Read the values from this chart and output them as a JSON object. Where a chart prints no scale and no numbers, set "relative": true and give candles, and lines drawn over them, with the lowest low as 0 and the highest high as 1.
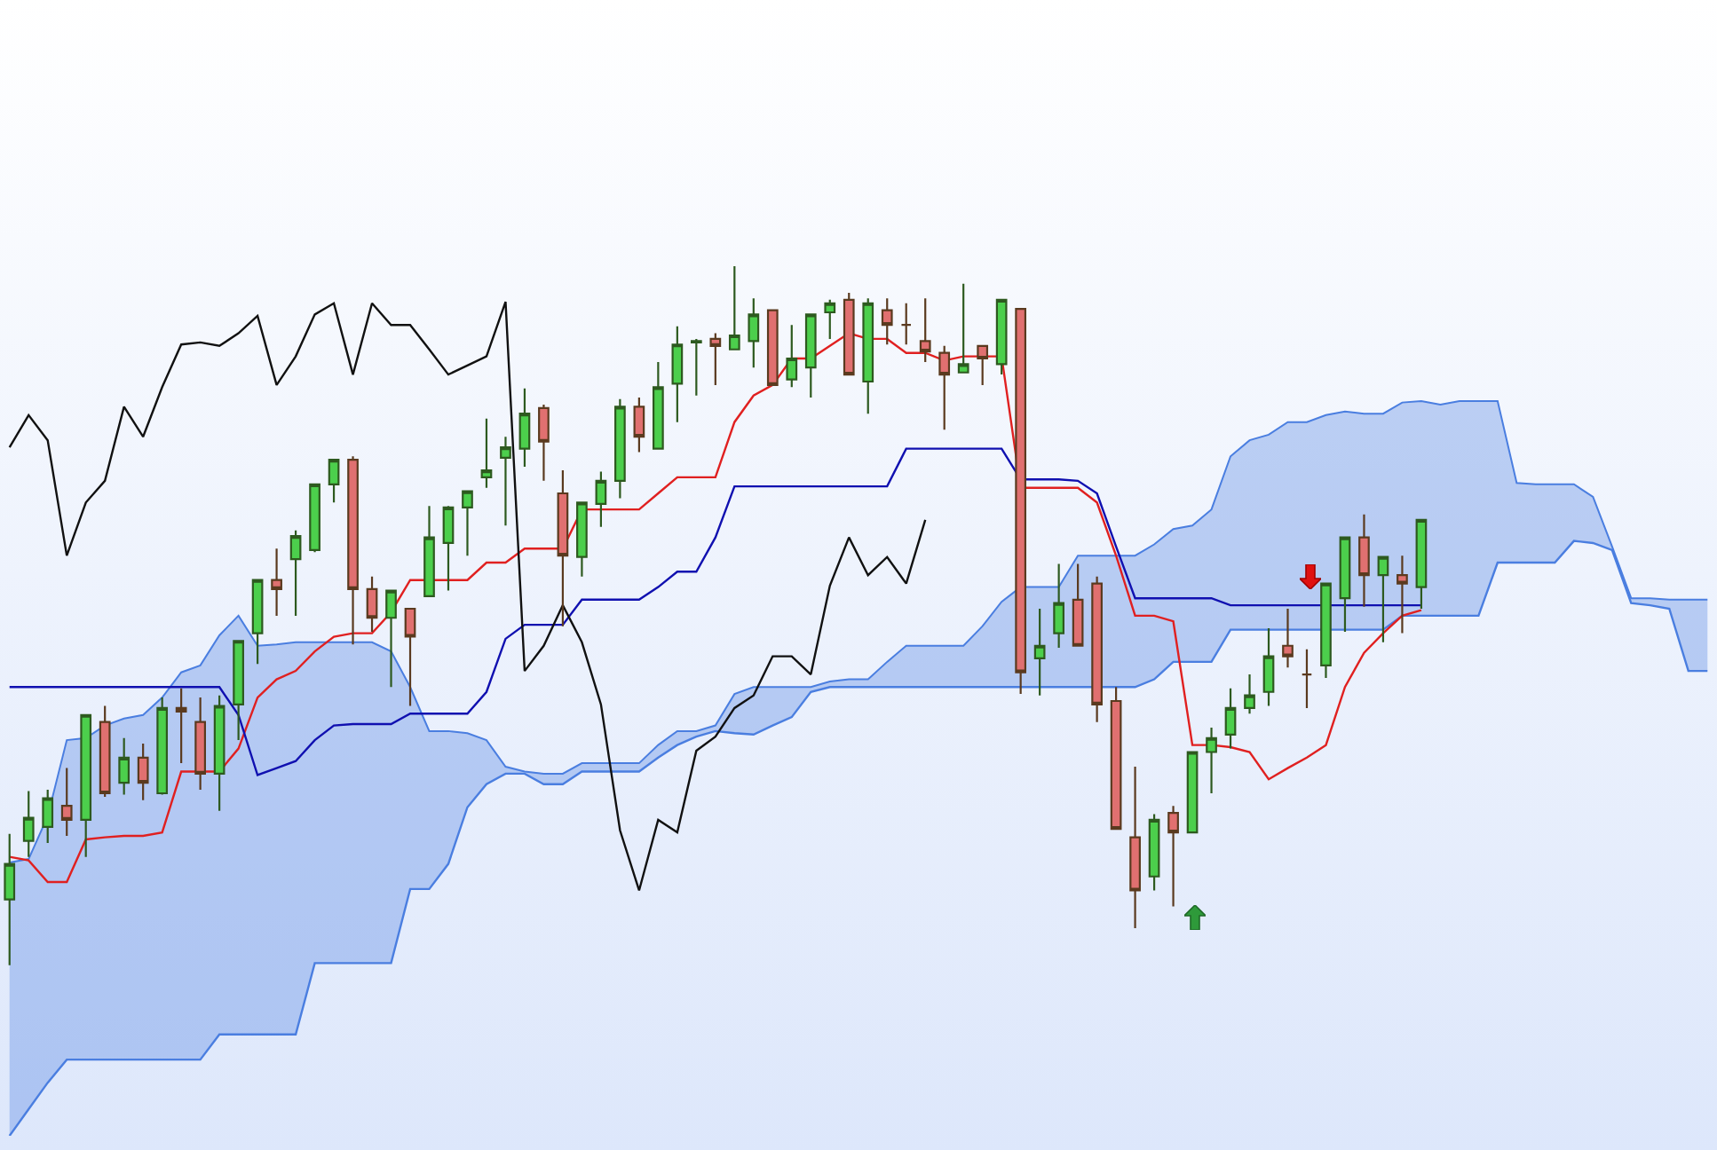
{
  "chart_data": {
    "type": "candlestick",
    "relative": true,
    "legend": false,
    "grid": false,
    "categories": [
      null,
      null,
      null,
      null,
      null,
      null,
      null,
      null,
      null,
      null,
      null,
      null,
      null,
      null,
      null,
      null,
      null,
      null,
      null,
      null,
      null,
      null,
      null,
      null,
      null,
      null,
      null,
      null,
      null,
      null,
      null,
      null,
      null,
      null,
      null,
      null,
      null,
      null,
      null,
      null,
      null,
      null,
      null,
      null,
      null,
      null,
      null,
      null,
      null,
      null,
      null,
      null,
      null,
      null,
      null,
      null,
      null,
      null,
      null,
      null,
      null,
      null,
      null,
      null,
      null,
      null,
      null,
      null,
      null,
      null,
      null,
      null,
      null,
      null,
      null,
      null,
      null,
      null,
      null,
      null,
      null,
      null,
      null,
      null,
      null,
      null,
      null,
      null,
      null,
      null
    ],
    "ohlc": [
      [
        0.094,
        0.188,
        0,
        0.145
      ],
      [
        0.178,
        0.249,
        0.155,
        0.211
      ],
      [
        0.198,
        0.251,
        0.175,
        0.239
      ],
      [
        0.228,
        0.282,
        0.185,
        0.208
      ],
      [
        0.208,
        0.358,
        0.155,
        0.358
      ],
      [
        0.348,
        0.371,
        0.241,
        0.246
      ],
      [
        0.261,
        0.325,
        0.244,
        0.297
      ],
      [
        0.297,
        0.317,
        0.236,
        0.261
      ],
      [
        0.246,
        0.383,
        0.244,
        0.368
      ],
      [
        0.368,
        0.396,
        0.289,
        0.363
      ],
      [
        0.348,
        0.383,
        0.251,
        0.274
      ],
      [
        0.274,
        0.386,
        0.221,
        0.371
      ],
      [
        0.373,
        0.464,
        0.322,
        0.464
      ],
      [
        0.475,
        0.551,
        0.431,
        0.551
      ],
      [
        0.551,
        0.596,
        0.5,
        0.538
      ],
      [
        0.581,
        0.622,
        0.5,
        0.614
      ],
      [
        0.594,
        0.688,
        0.591,
        0.688
      ],
      [
        0.688,
        0.723,
        0.662,
        0.723
      ],
      [
        0.723,
        0.728,
        0.459,
        0.538
      ],
      [
        0.538,
        0.556,
        0.477,
        0.497
      ],
      [
        0.497,
        0.536,
        0.398,
        0.536
      ],
      [
        0.51,
        0.51,
        0.371,
        0.47
      ],
      [
        0.528,
        0.657,
        0.528,
        0.612
      ],
      [
        0.604,
        0.657,
        0.536,
        0.655
      ],
      [
        0.655,
        0.678,
        0.586,
        0.678
      ],
      [
        0.698,
        0.782,
        0.683,
        0.708
      ],
      [
        0.726,
        0.756,
        0.629,
        0.741
      ],
      [
        0.739,
        0.825,
        0.713,
        0.789
      ],
      [
        0.797,
        0.802,
        0.693,
        0.749
      ],
      [
        0.675,
        0.708,
        0.485,
        0.586
      ],
      [
        0.584,
        0.662,
        0.556,
        0.662
      ],
      [
        0.66,
        0.706,
        0.627,
        0.693
      ],
      [
        0.693,
        0.81,
        0.668,
        0.799
      ],
      [
        0.799,
        0.812,
        0.734,
        0.756
      ],
      [
        0.739,
        0.863,
        0.739,
        0.827
      ],
      [
        0.832,
        0.914,
        0.777,
        0.888
      ],
      [
        0.891,
        0.896,
        0.815,
        0.893
      ],
      [
        0.896,
        0.904,
        0.83,
        0.886
      ],
      [
        0.881,
        1,
        0.881,
        0.901
      ],
      [
        0.893,
        0.954,
        0.855,
        0.931
      ],
      [
        0.937,
        0.937,
        0.83,
        0.83
      ],
      [
        0.838,
        0.916,
        0.827,
        0.868
      ],
      [
        0.855,
        0.931,
        0.812,
        0.931
      ],
      [
        0.934,
        0.952,
        0.896,
        0.947
      ],
      [
        0.952,
        0.962,
        0.845,
        0.845
      ],
      [
        0.835,
        0.954,
        0.789,
        0.947
      ],
      [
        0.937,
        0.954,
        0.888,
        0.916
      ],
      [
        0.916,
        0.947,
        0.888,
        0.916
      ],
      [
        0.893,
        0.954,
        0.863,
        0.878
      ],
      [
        0.876,
        0.886,
        0.766,
        0.845
      ],
      [
        0.848,
        0.975,
        0.848,
        0.86
      ],
      [
        0.886,
        0.886,
        0.83,
        0.868
      ],
      [
        0.86,
        0.952,
        0.845,
        0.952
      ],
      [
        0.939,
        0.939,
        0.388,
        0.419
      ],
      [
        0.439,
        0.51,
        0.386,
        0.457
      ],
      [
        0.475,
        0.574,
        0.454,
        0.518
      ],
      [
        0.523,
        0.574,
        0.457,
        0.457
      ],
      [
        0.546,
        0.556,
        0.348,
        0.373
      ],
      [
        0.378,
        0.398,
        0.195,
        0.195
      ],
      [
        0.183,
        0.284,
        0.053,
        0.107
      ],
      [
        0.127,
        0.216,
        0.107,
        0.208
      ],
      [
        0.218,
        0.228,
        0.084,
        0.19
      ],
      [
        0.19,
        0.305,
        0.19,
        0.305
      ],
      [
        0.305,
        0.34,
        0.246,
        0.325
      ],
      [
        0.33,
        0.396,
        0.31,
        0.368
      ],
      [
        0.368,
        0.416,
        0.36,
        0.386
      ],
      [
        0.391,
        0.482,
        0.371,
        0.442
      ],
      [
        0.457,
        0.51,
        0.426,
        0.442
      ],
      [
        0.416,
        0.452,
        0.368,
        0.416
      ],
      [
        0.429,
        0.546,
        0.411,
        0.546
      ],
      [
        0.525,
        0.612,
        0.477,
        0.612
      ],
      [
        0.612,
        0.645,
        0.513,
        0.558
      ],
      [
        0.558,
        0.584,
        0.462,
        0.584
      ],
      [
        0.558,
        0.586,
        0.475,
        0.546
      ],
      [
        0.541,
        0.637,
        0.51,
        0.637
      ],
      null,
      null,
      null,
      null,
      null,
      null,
      null,
      null,
      null,
      null,
      null,
      null,
      null,
      null,
      null
    ],
    "series": [
      {
        "type": "area",
        "color": "#4a7ee0",
        "values": [
          0.147,
          0.152,
          0.213,
          0.322,
          0.325,
          0.343,
          0.353,
          0.358,
          0.383,
          0.419,
          0.429,
          0.472,
          0.5,
          0.457,
          0.459,
          0.462,
          0.462,
          0.462,
          0.462,
          0.462,
          0.449,
          0.398,
          0.335,
          0.335,
          0.332,
          0.322,
          0.284,
          0.277,
          0.274,
          0.274,
          0.289,
          0.289,
          0.289,
          0.289,
          0.315,
          0.335,
          0.335,
          0.343,
          0.388,
          0.398,
          0.398,
          0.398,
          0.398,
          0.406,
          0.409,
          0.409,
          0.434,
          0.457,
          0.457,
          0.457,
          0.457,
          0.485,
          0.52,
          0.541,
          0.541,
          0.541,
          0.586,
          0.586,
          0.586,
          0.586,
          0.602,
          0.624,
          0.629,
          0.652,
          0.728,
          0.751,
          0.759,
          0.777,
          0.777,
          0.787,
          0.792,
          0.789,
          0.789,
          0.805,
          0.807,
          0.802,
          0.807,
          0.807,
          0.807,
          0.69,
          0.688,
          0.688,
          0.688,
          0.67,
          0.599,
          0.525,
          0.525,
          0.523,
          0.523,
          0.523
        ]
      },
      {
        "type": "line",
        "color": "#4a7ee0",
        "values": [
          -0.244,
          -0.206,
          -0.168,
          -0.135,
          -0.135,
          -0.135,
          -0.135,
          -0.135,
          -0.135,
          -0.135,
          -0.135,
          -0.099,
          -0.099,
          -0.099,
          -0.099,
          -0.099,
          0.003,
          0.003,
          0.003,
          0.003,
          0.003,
          0.109,
          0.109,
          0.145,
          0.226,
          0.259,
          0.274,
          0.274,
          0.259,
          0.259,
          0.277,
          0.277,
          0.277,
          0.277,
          0.297,
          0.315,
          0.327,
          0.335,
          0.332,
          0.33,
          0.343,
          0.355,
          0.391,
          0.398,
          0.398,
          0.398,
          0.398,
          0.398,
          0.398,
          0.398,
          0.398,
          0.398,
          0.398,
          0.398,
          0.398,
          0.398,
          0.398,
          0.398,
          0.398,
          0.398,
          0.409,
          0.434,
          0.434,
          0.434,
          0.48,
          0.48,
          0.48,
          0.48,
          0.48,
          0.48,
          0.48,
          0.48,
          0.48,
          0.5,
          0.5,
          0.5,
          0.5,
          0.5,
          0.576,
          0.576,
          0.576,
          0.576,
          0.607,
          0.604,
          0.594,
          0.518,
          0.515,
          0.51,
          0.421,
          0.421
        ]
      },
      {
        "type": "line",
        "color": "#e02020",
        "values": [
          0.155,
          0.15,
          0.119,
          0.119,
          0.18,
          0.183,
          0.185,
          0.185,
          0.19,
          0.277,
          0.277,
          0.277,
          0.31,
          0.383,
          0.409,
          0.421,
          0.449,
          0.47,
          0.475,
          0.475,
          0.505,
          0.551,
          0.551,
          0.551,
          0.551,
          0.576,
          0.576,
          0.596,
          0.596,
          0.596,
          0.652,
          0.652,
          0.652,
          0.652,
          0.675,
          0.698,
          0.698,
          0.698,
          0.777,
          0.815,
          0.83,
          0.868,
          0.868,
          0.886,
          0.904,
          0.896,
          0.896,
          0.876,
          0.876,
          0.865,
          0.871,
          0.871,
          0.871,
          0.683,
          0.683,
          0.683,
          0.683,
          0.662,
          0.586,
          0.5,
          0.5,
          0.492,
          0.315,
          0.315,
          0.312,
          0.305,
          0.266,
          0.282,
          0.297,
          0.315,
          0.398,
          0.447,
          0.475,
          0.5,
          0.508,
          null,
          null,
          null,
          null,
          null,
          null,
          null,
          null,
          null,
          null,
          null,
          null,
          null,
          null,
          null
        ]
      },
      {
        "type": "line",
        "color": "#1010b0",
        "values": [
          0.398,
          0.398,
          0.398,
          0.398,
          0.398,
          0.398,
          0.398,
          0.398,
          0.398,
          0.398,
          0.398,
          0.398,
          0.358,
          0.272,
          0.282,
          0.292,
          0.322,
          0.343,
          0.345,
          0.345,
          0.345,
          0.36,
          0.36,
          0.36,
          0.36,
          0.391,
          0.467,
          0.487,
          0.487,
          0.487,
          0.523,
          0.523,
          0.523,
          0.523,
          0.541,
          0.563,
          0.563,
          0.612,
          0.685,
          0.685,
          0.685,
          0.685,
          0.685,
          0.685,
          0.685,
          0.685,
          0.685,
          0.739,
          0.739,
          0.739,
          0.739,
          0.739,
          0.739,
          0.695,
          0.695,
          0.695,
          0.693,
          0.675,
          0.599,
          0.525,
          0.525,
          0.525,
          0.525,
          0.525,
          0.515,
          0.515,
          0.515,
          0.515,
          0.515,
          0.515,
          0.515,
          0.515,
          0.515,
          0.515,
          0.515,
          null,
          null,
          null,
          null,
          null,
          null,
          null,
          null,
          null,
          null,
          null,
          null,
          null,
          null,
          null
        ]
      },
      {
        "type": "line",
        "color": "#111111",
        "values": [
          0.741,
          0.787,
          0.751,
          0.586,
          0.662,
          0.693,
          0.799,
          0.756,
          0.827,
          0.888,
          0.891,
          0.886,
          0.904,
          0.929,
          0.83,
          0.871,
          0.931,
          0.947,
          0.845,
          0.947,
          0.916,
          0.916,
          0.881,
          0.845,
          0.858,
          0.871,
          0.949,
          0.421,
          0.457,
          0.515,
          0.462,
          0.373,
          0.193,
          0.107,
          0.208,
          0.19,
          0.307,
          0.327,
          0.368,
          0.386,
          0.442,
          0.442,
          0.416,
          0.543,
          0.612,
          0.558,
          0.584,
          0.546,
          0.637,
          null,
          null,
          null,
          null,
          null,
          null,
          null,
          null,
          null,
          null,
          null,
          null,
          null,
          null,
          null,
          null,
          null,
          null,
          null,
          null,
          null,
          null,
          null,
          null,
          null,
          null,
          null,
          null,
          null,
          null,
          null,
          null,
          null,
          null,
          null,
          null,
          null,
          null,
          null,
          null,
          null
        ]
      }
    ]
  }
}
